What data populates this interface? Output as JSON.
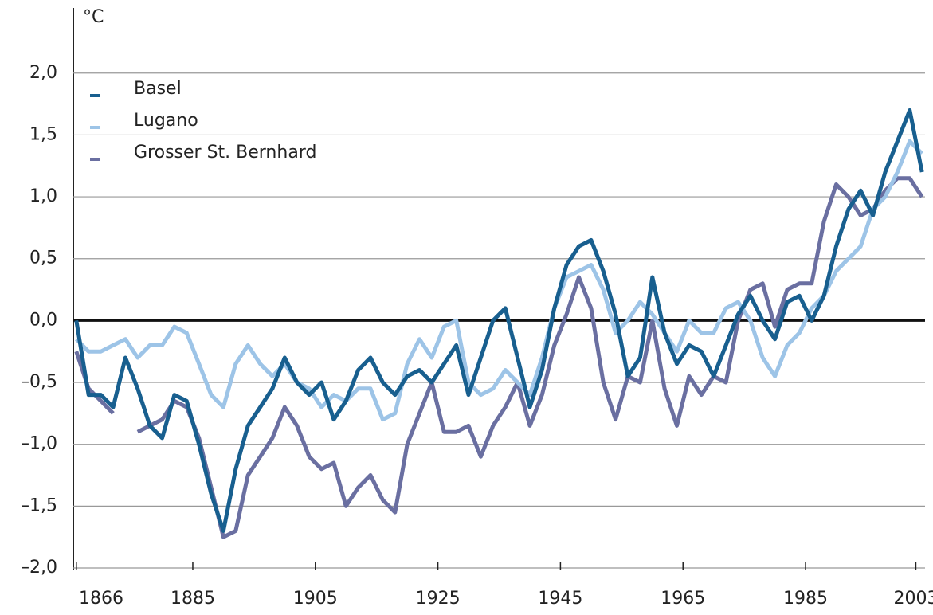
{
  "chart_data": {
    "type": "line",
    "y_unit": "°C",
    "x": [
      1866,
      1868,
      1870,
      1872,
      1874,
      1876,
      1878,
      1880,
      1882,
      1884,
      1886,
      1888,
      1890,
      1892,
      1894,
      1896,
      1898,
      1900,
      1902,
      1904,
      1906,
      1908,
      1910,
      1912,
      1914,
      1916,
      1918,
      1920,
      1922,
      1924,
      1926,
      1928,
      1930,
      1932,
      1934,
      1936,
      1938,
      1940,
      1942,
      1944,
      1946,
      1948,
      1950,
      1952,
      1954,
      1956,
      1958,
      1960,
      1962,
      1964,
      1966,
      1968,
      1970,
      1972,
      1974,
      1976,
      1978,
      1980,
      1982,
      1984,
      1986,
      1988,
      1990,
      1992,
      1994,
      1996,
      1998,
      2000,
      2002,
      2004
    ],
    "series": [
      {
        "name": "Basel",
        "color": "#185f8f",
        "values": [
          0.0,
          -0.6,
          -0.6,
          -0.7,
          -0.3,
          -0.55,
          -0.85,
          -0.95,
          -0.6,
          -0.65,
          -1.0,
          -1.4,
          -1.7,
          -1.2,
          -0.85,
          -0.7,
          -0.55,
          -0.3,
          -0.5,
          -0.6,
          -0.5,
          -0.8,
          -0.65,
          -0.4,
          -0.3,
          -0.5,
          -0.6,
          -0.45,
          -0.4,
          -0.5,
          -0.35,
          -0.2,
          -0.6,
          -0.3,
          0.0,
          0.1,
          -0.3,
          -0.7,
          -0.4,
          0.1,
          0.45,
          0.6,
          0.65,
          0.4,
          0.05,
          -0.45,
          -0.3,
          0.35,
          -0.1,
          -0.35,
          -0.2,
          -0.25,
          -0.45,
          -0.2,
          0.05,
          0.2,
          0.0,
          -0.15,
          0.15,
          0.2,
          0.0,
          0.2,
          0.6,
          0.9,
          1.05,
          0.85,
          1.2,
          1.45,
          1.7,
          1.2
        ]
      },
      {
        "name": "Lugano",
        "color": "#9dc4e7",
        "values": [
          -0.15,
          -0.25,
          -0.25,
          -0.2,
          -0.15,
          -0.3,
          -0.2,
          -0.2,
          -0.05,
          -0.1,
          -0.35,
          -0.6,
          -0.7,
          -0.35,
          -0.2,
          -0.35,
          -0.45,
          -0.35,
          -0.5,
          -0.55,
          -0.7,
          -0.6,
          -0.65,
          -0.55,
          -0.55,
          -0.8,
          -0.75,
          -0.35,
          -0.15,
          -0.3,
          -0.05,
          0.0,
          -0.5,
          -0.6,
          -0.55,
          -0.4,
          -0.5,
          -0.6,
          -0.3,
          0.1,
          0.35,
          0.4,
          0.45,
          0.25,
          -0.1,
          0.0,
          0.15,
          0.05,
          -0.1,
          -0.25,
          0.0,
          -0.1,
          -0.1,
          0.1,
          0.15,
          0.0,
          -0.3,
          -0.45,
          -0.2,
          -0.1,
          0.1,
          0.2,
          0.4,
          0.5,
          0.6,
          0.9,
          1.0,
          1.2,
          1.45,
          1.35
        ]
      },
      {
        "name": "Grosser St. Bernhard",
        "color": "#6a6fa1",
        "values": [
          -0.25,
          -0.55,
          -0.65,
          -0.75,
          null,
          -0.9,
          -0.85,
          -0.8,
          -0.65,
          -0.7,
          -0.95,
          -1.35,
          -1.75,
          -1.7,
          -1.25,
          -1.1,
          -0.95,
          -0.7,
          -0.85,
          -1.1,
          -1.2,
          -1.15,
          -1.5,
          -1.35,
          -1.25,
          -1.45,
          -1.55,
          -1.0,
          -0.75,
          -0.5,
          -0.9,
          -0.9,
          -0.85,
          -1.1,
          -0.85,
          -0.7,
          -0.5,
          -0.85,
          -0.6,
          -0.2,
          0.05,
          0.35,
          0.1,
          -0.5,
          -0.8,
          -0.45,
          -0.5,
          0.0,
          -0.55,
          -0.85,
          -0.45,
          -0.6,
          -0.45,
          -0.5,
          0.0,
          0.25,
          0.3,
          -0.05,
          0.25,
          0.3,
          0.3,
          0.8,
          1.1,
          1.0,
          0.85,
          0.9,
          1.05,
          1.15,
          1.15,
          1.0
        ]
      }
    ],
    "xlim": [
      1865.5,
      2004.5
    ],
    "xticks": [
      1866,
      1885,
      1905,
      1925,
      1945,
      1965,
      1985,
      2003
    ],
    "ylim": [
      -2,
      2.05
    ],
    "yticks": [
      {
        "value": -2,
        "label": "–2,0"
      },
      {
        "value": -1.5,
        "label": "–1,5"
      },
      {
        "value": -1,
        "label": "–1,0"
      },
      {
        "value": -0.5,
        "label": "–0,5"
      },
      {
        "value": 0,
        "label": "0,0"
      },
      {
        "value": 0.5,
        "label": "0,5"
      },
      {
        "value": 1,
        "label": "1,0"
      },
      {
        "value": 1.5,
        "label": "1,5"
      },
      {
        "value": 2,
        "label": "2,0"
      }
    ],
    "grid": true,
    "legend": "upper left"
  }
}
